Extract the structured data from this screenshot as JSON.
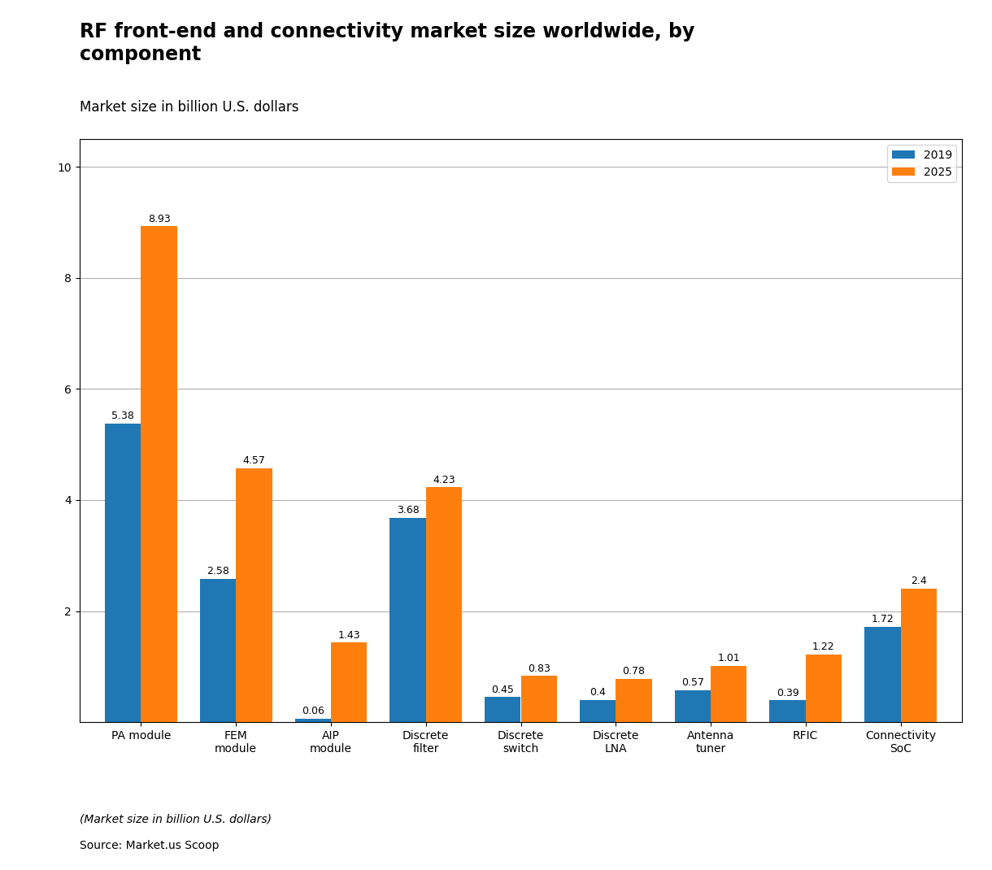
{
  "chart_data": {
    "type": "bar",
    "title": "RF front-end and connectivity market size worldwide, by\ncomponent",
    "subtitle": "Market size in billion U.S. dollars",
    "categories": [
      "PA module",
      "FEM\nmodule",
      "AIP\nmodule",
      "Discrete\nfilter",
      "Discrete\nswitch",
      "Discrete\nLNA",
      "Antenna\ntuner",
      "RFIC",
      "Connectivity\nSoC"
    ],
    "series": [
      {
        "name": "2019",
        "values": [
          5.38,
          2.58,
          0.06,
          3.68,
          0.45,
          0.4,
          0.57,
          0.39,
          1.72
        ]
      },
      {
        "name": "2025",
        "values": [
          8.93,
          4.57,
          1.43,
          4.23,
          0.83,
          0.78,
          1.01,
          1.22,
          2.4
        ]
      }
    ],
    "ylim": [
      0,
      10.5
    ],
    "yticks": [
      2,
      4,
      6,
      8,
      10
    ],
    "grid": true,
    "legend": "upper right",
    "data_labels": true,
    "annotations": [
      "(Market size in billion U.S. dollars)",
      "Source: Market.us Scoop"
    ]
  }
}
